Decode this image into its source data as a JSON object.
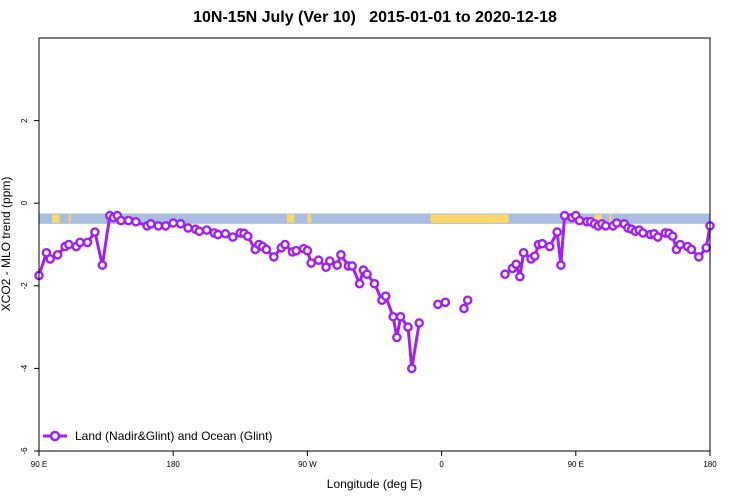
{
  "chart_data": {
    "type": "line",
    "title": "10N-15N July (Ver 10)   2015-01-01 to 2020-12-18",
    "xlabel": "Longitude (deg E)",
    "ylabel": "XCO2 - MLO trend (ppm)",
    "xlim": [
      90,
      450
    ],
    "ylim": [
      -6,
      4
    ],
    "x_ticks": [
      {
        "value": 90,
        "label": "90 E"
      },
      {
        "value": 162,
        "label": "180"
      },
      {
        "value": 234,
        "label": "90 W"
      },
      {
        "value": 306,
        "label": "0"
      },
      {
        "value": 378,
        "label": "90 E"
      },
      {
        "value": 450,
        "label": "180"
      }
    ],
    "y_ticks": [
      -6,
      -4,
      -2,
      0,
      2
    ],
    "grid": false,
    "legend_position": "bottom-left",
    "series": [
      {
        "name": "Land (Nadir&Glint) and Ocean (Glint)",
        "color": "#a020f0",
        "x": [
          90,
          94,
          96,
          100,
          104,
          106,
          110,
          112,
          116,
          120,
          124,
          128,
          130,
          132,
          134,
          138,
          142,
          148,
          150,
          154,
          158,
          162,
          166,
          170,
          174,
          176,
          180,
          184,
          186,
          190,
          194,
          198,
          200,
          202,
          206,
          208,
          210,
          212,
          216,
          220,
          222,
          226,
          228,
          232,
          234,
          236,
          240,
          244,
          246,
          250,
          252,
          256,
          258,
          262,
          264,
          266,
          270,
          274,
          276,
          280,
          282,
          284,
          288,
          290,
          294,
          296,
          298,
          300,
          304,
          308,
          312,
          314,
          316,
          318,
          320,
          322,
          326,
          328,
          330,
          332,
          334,
          336,
          340,
          344,
          346,
          348,
          350,
          354,
          356,
          358,
          360,
          364,
          368,
          370,
          372,
          376,
          378,
          380,
          384,
          386,
          388,
          390,
          392,
          394,
          398,
          400,
          404,
          406,
          408,
          410,
          412,
          414,
          418,
          420,
          422,
          426,
          428,
          430,
          432,
          434,
          438,
          440,
          444,
          448,
          450
        ],
        "y": [
          -1.75,
          -1.2,
          -1.35,
          -1.25,
          -1.05,
          -1.0,
          -1.05,
          -0.95,
          -0.95,
          -0.7,
          -1.5,
          -0.3,
          -0.35,
          -0.3,
          -0.42,
          -0.42,
          -0.45,
          -0.55,
          -0.5,
          -0.55,
          -0.55,
          -0.48,
          -0.5,
          -0.6,
          -0.63,
          -0.68,
          -0.65,
          -0.72,
          -0.76,
          -0.74,
          -0.82,
          -0.72,
          -0.73,
          -0.8,
          -1.12,
          -1.0,
          -1.05,
          -1.12,
          -1.3,
          -1.08,
          -1.0,
          -1.18,
          -1.15,
          -1.1,
          -1.15,
          -1.45,
          -1.38,
          -1.55,
          -1.4,
          -1.5,
          -1.25,
          -1.52,
          -1.52,
          -1.95,
          -1.62,
          -1.72,
          -1.95,
          -2.35,
          -2.25,
          -2.75,
          -3.25,
          -2.75,
          -3.0,
          -4.0,
          -2.9,
          null,
          null,
          null,
          -2.45,
          -2.4,
          null,
          null,
          null,
          -2.55,
          -2.35,
          null,
          null,
          null,
          null,
          null,
          null,
          null,
          -1.72,
          -1.58,
          -1.48,
          -1.78,
          -1.2,
          -1.35,
          -1.28,
          -1.0,
          -0.98,
          -1.05,
          -0.7,
          -1.5,
          -0.3,
          -0.35,
          -0.3,
          -0.42,
          -0.45,
          -0.45,
          -0.5,
          -0.55,
          -0.5,
          -0.55,
          -0.55,
          -0.48,
          -0.5,
          -0.6,
          -0.63,
          -0.68,
          -0.65,
          -0.72,
          -0.76,
          -0.74,
          -0.82,
          -0.72,
          -0.73,
          -0.8,
          -1.12,
          -1.0,
          -1.05,
          -1.12,
          -1.3,
          -1.08,
          -0.55
        ]
      }
    ]
  },
  "map_band": {
    "ocean_color": "#a9bddf",
    "land_color": "#ffd966"
  }
}
